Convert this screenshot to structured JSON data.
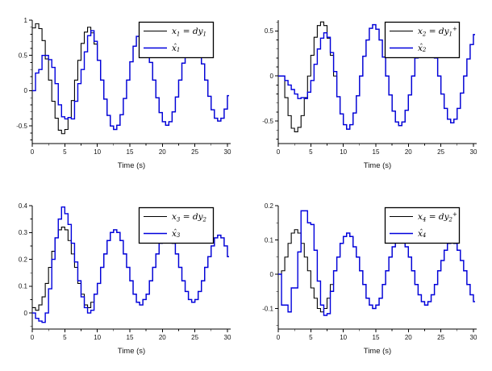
{
  "figure": {
    "background": "#ffffff",
    "true_state_color": "#000000",
    "estimate_color": "#0000dd",
    "xlabel": "Time (s)"
  },
  "chart_data": [
    {
      "type": "line",
      "id": "x1",
      "subplot": "top-left",
      "title": "",
      "xlabel": "Time (s)",
      "ylabel": "",
      "xlim": [
        0,
        30.5
      ],
      "xticks": [
        0,
        5,
        10,
        15,
        20,
        25,
        30
      ],
      "x_minor_step": 2.5,
      "ylim": [
        -0.75,
        1.0
      ],
      "yticks": [
        -0.5,
        0,
        0.5,
        1
      ],
      "y_minor_step": 0.1,
      "dt": 0.5,
      "step_mode": "stairs-post",
      "legend_position": "top-right",
      "grid": false,
      "series": [
        {
          "name": "x_1 = dy_1",
          "color": "#000000",
          "width": 1.1,
          "values": [
            0.89,
            0.95,
            0.88,
            0.71,
            0.45,
            0.15,
            -0.15,
            -0.39,
            -0.56,
            -0.61,
            -0.55,
            -0.38,
            -0.14,
            0.15,
            0.43,
            0.67,
            0.83,
            0.9,
            0.82,
            0.66,
            0.43,
            0.15,
            -0.12,
            -0.35,
            -0.5,
            -0.55,
            -0.49,
            -0.34,
            -0.11,
            0.15,
            0.41,
            0.63,
            0.77,
            0.82,
            0.76,
            0.62,
            0.4,
            0.15,
            -0.1,
            -0.31,
            -0.44,
            -0.49,
            -0.44,
            -0.3,
            -0.09,
            0.15,
            0.39,
            0.59,
            0.72,
            0.76,
            0.71,
            0.58,
            0.38,
            0.15,
            -0.08,
            -0.27,
            -0.39,
            -0.43,
            -0.39,
            -0.26,
            -0.07
          ]
        },
        {
          "name": "\\hat{x}_1",
          "color": "#0000dd",
          "width": 1.4,
          "values": [
            0,
            0.25,
            0.3,
            0.5,
            0.5,
            0.44,
            0.33,
            0.1,
            -0.2,
            -0.37,
            -0.4,
            -0.38,
            -0.4,
            -0.15,
            0.1,
            0.3,
            0.55,
            0.78,
            0.85,
            0.7,
            0.43,
            0.15,
            -0.12,
            -0.35,
            -0.5,
            -0.55,
            -0.49,
            -0.34,
            -0.11,
            0.15,
            0.41,
            0.63,
            0.77,
            0.82,
            0.76,
            0.62,
            0.4,
            0.15,
            -0.1,
            -0.31,
            -0.44,
            -0.49,
            -0.44,
            -0.3,
            -0.09,
            0.15,
            0.39,
            0.59,
            0.72,
            0.76,
            0.71,
            0.58,
            0.38,
            0.15,
            -0.08,
            -0.27,
            -0.39,
            -0.43,
            -0.39,
            -0.26,
            -0.07
          ]
        }
      ]
    },
    {
      "type": "line",
      "id": "x2",
      "subplot": "top-right",
      "title": "",
      "xlabel": "Time (s)",
      "ylabel": "",
      "xlim": [
        0,
        30.5
      ],
      "xticks": [
        0,
        5,
        10,
        15,
        20,
        25,
        30
      ],
      "x_minor_step": 2.5,
      "ylim": [
        -0.75,
        0.62
      ],
      "yticks": [
        -0.5,
        0,
        0.5
      ],
      "y_minor_step": 0.1,
      "dt": 0.5,
      "step_mode": "stairs-post",
      "legend_position": "top-right",
      "grid": false,
      "series": [
        {
          "name": "x_2 = dy_1^+",
          "color": "#000000",
          "width": 1.1,
          "values": [
            0,
            0,
            -0.24,
            -0.44,
            -0.58,
            -0.62,
            -0.57,
            -0.44,
            -0.24,
            0,
            0.23,
            0.43,
            0.56,
            0.6,
            0.56,
            0.42,
            0.23,
            0,
            -0.23,
            -0.42,
            -0.54,
            -0.59,
            -0.54,
            -0.41,
            -0.22,
            0,
            0.22,
            0.4,
            0.53,
            0.57,
            0.52,
            0.4,
            0.21,
            0,
            -0.21,
            -0.39,
            -0.51,
            -0.55,
            -0.51,
            -0.38,
            -0.21,
            0,
            0.2,
            0.37,
            0.49,
            0.53,
            0.49,
            0.37,
            0.2,
            0,
            -0.2,
            -0.36,
            -0.48,
            -0.52,
            -0.48,
            -0.36,
            -0.19,
            0,
            0.19,
            0.35,
            0.46
          ]
        },
        {
          "name": "\\hat{x}_2",
          "color": "#0000dd",
          "width": 1.4,
          "values": [
            0,
            0,
            -0.05,
            -0.1,
            -0.15,
            -0.2,
            -0.25,
            -0.24,
            -0.25,
            -0.18,
            -0.05,
            0.13,
            0.3,
            0.42,
            0.48,
            0.43,
            0.26,
            0.05,
            -0.23,
            -0.42,
            -0.54,
            -0.59,
            -0.54,
            -0.41,
            -0.22,
            0,
            0.22,
            0.4,
            0.53,
            0.57,
            0.52,
            0.4,
            0.21,
            0,
            -0.21,
            -0.39,
            -0.51,
            -0.55,
            -0.51,
            -0.38,
            -0.21,
            0,
            0.2,
            0.37,
            0.49,
            0.53,
            0.49,
            0.37,
            0.2,
            0,
            -0.2,
            -0.36,
            -0.48,
            -0.52,
            -0.48,
            -0.36,
            -0.19,
            0,
            0.19,
            0.35,
            0.46
          ]
        }
      ]
    },
    {
      "type": "line",
      "id": "x3",
      "subplot": "bottom-left",
      "title": "",
      "xlabel": "Time (s)",
      "ylabel": "",
      "xlim": [
        0,
        30.5
      ],
      "xticks": [
        0,
        5,
        10,
        15,
        20,
        25,
        30
      ],
      "x_minor_step": 2.5,
      "ylim": [
        -0.06,
        0.4
      ],
      "yticks": [
        0,
        0.1,
        0.2,
        0.3,
        0.4
      ],
      "y_minor_step": 0.05,
      "dt": 0.5,
      "step_mode": "stairs-post",
      "legend_position": "top-right",
      "grid": false,
      "series": [
        {
          "name": "x_3 = dy_2",
          "color": "#000000",
          "width": 1.1,
          "values": [
            0.02,
            0.01,
            0.03,
            0.06,
            0.11,
            0.17,
            0.23,
            0.28,
            0.31,
            0.32,
            0.31,
            0.27,
            0.22,
            0.17,
            0.11,
            0.07,
            0.03,
            0.02,
            0.04,
            0.07,
            0.11,
            0.17,
            0.22,
            0.27,
            0.3,
            0.31,
            0.3,
            0.27,
            0.22,
            0.17,
            0.12,
            0.07,
            0.04,
            0.03,
            0.05,
            0.07,
            0.12,
            0.17,
            0.22,
            0.26,
            0.29,
            0.3,
            0.29,
            0.26,
            0.22,
            0.17,
            0.12,
            0.08,
            0.05,
            0.04,
            0.05,
            0.08,
            0.12,
            0.17,
            0.21,
            0.25,
            0.28,
            0.29,
            0.28,
            0.25,
            0.21
          ]
        },
        {
          "name": "\\hat{x}_3",
          "color": "#0000dd",
          "width": 1.4,
          "values": [
            0,
            -0.02,
            -0.03,
            -0.035,
            0,
            0.09,
            0.2,
            0.28,
            0.35,
            0.395,
            0.37,
            0.33,
            0.26,
            0.19,
            0.12,
            0.06,
            0.02,
            0,
            0.01,
            0.07,
            0.11,
            0.17,
            0.22,
            0.27,
            0.3,
            0.31,
            0.3,
            0.27,
            0.22,
            0.17,
            0.12,
            0.07,
            0.04,
            0.03,
            0.05,
            0.07,
            0.12,
            0.17,
            0.22,
            0.26,
            0.29,
            0.3,
            0.29,
            0.26,
            0.22,
            0.17,
            0.12,
            0.08,
            0.05,
            0.04,
            0.05,
            0.08,
            0.12,
            0.17,
            0.21,
            0.25,
            0.28,
            0.29,
            0.28,
            0.25,
            0.21
          ]
        }
      ]
    },
    {
      "type": "line",
      "id": "x4",
      "subplot": "bottom-right",
      "title": "",
      "xlabel": "Time (s)",
      "ylabel": "",
      "xlim": [
        0,
        30.5
      ],
      "xticks": [
        0,
        5,
        10,
        15,
        20,
        25,
        30
      ],
      "x_minor_step": 2.5,
      "ylim": [
        -0.16,
        0.2
      ],
      "yticks": [
        -0.1,
        0,
        0.1,
        0.2
      ],
      "y_minor_step": 0.05,
      "dt": 0.5,
      "step_mode": "stairs-post",
      "legend_position": "top-right",
      "grid": false,
      "series": [
        {
          "name": "x_4 = dy_2^+",
          "color": "#000000",
          "width": 1.1,
          "values": [
            0,
            0.01,
            0.05,
            0.09,
            0.12,
            0.13,
            0.12,
            0.09,
            0.05,
            0.01,
            -0.04,
            -0.07,
            -0.1,
            -0.11,
            -0.1,
            -0.07,
            -0.03,
            0.01,
            0.05,
            0.09,
            0.11,
            0.12,
            0.11,
            0.08,
            0.05,
            0.01,
            -0.03,
            -0.07,
            -0.09,
            -0.1,
            -0.09,
            -0.07,
            -0.03,
            0.01,
            0.05,
            0.08,
            0.1,
            0.11,
            0.1,
            0.08,
            0.05,
            0.01,
            -0.03,
            -0.06,
            -0.08,
            -0.09,
            -0.08,
            -0.06,
            -0.03,
            0.01,
            0.04,
            0.07,
            0.09,
            0.1,
            0.09,
            0.07,
            0.04,
            0.01,
            -0.03,
            -0.06,
            -0.08
          ]
        },
        {
          "name": "\\hat{x}_4",
          "color": "#0000dd",
          "width": 1.4,
          "values": [
            0,
            -0.09,
            -0.09,
            -0.11,
            -0.04,
            -0.04,
            0.065,
            0.185,
            0.185,
            0.15,
            0.145,
            0.07,
            -0.02,
            -0.09,
            -0.12,
            -0.115,
            -0.05,
            0.01,
            0.05,
            0.09,
            0.11,
            0.12,
            0.11,
            0.08,
            0.05,
            0.01,
            -0.03,
            -0.07,
            -0.09,
            -0.1,
            -0.09,
            -0.07,
            -0.03,
            0.01,
            0.05,
            0.08,
            0.1,
            0.11,
            0.1,
            0.08,
            0.05,
            0.01,
            -0.03,
            -0.06,
            -0.08,
            -0.09,
            -0.08,
            -0.06,
            -0.03,
            0.01,
            0.04,
            0.07,
            0.09,
            0.1,
            0.09,
            0.07,
            0.04,
            0.01,
            -0.03,
            -0.06,
            -0.08
          ]
        }
      ]
    }
  ]
}
